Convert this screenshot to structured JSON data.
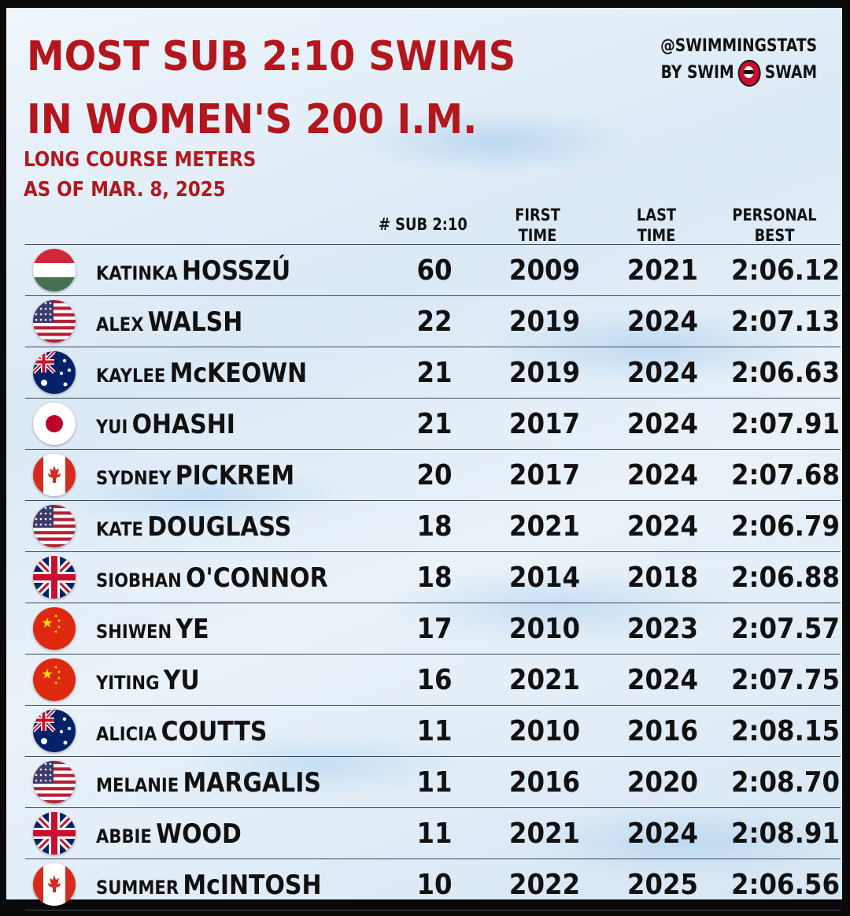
{
  "title": {
    "line1": "MOST SUB 2:10 SWIMS",
    "line2": "IN WOMEN'S 200 I.M."
  },
  "subtitle": {
    "line1": "LONG COURSE METERS",
    "line2": "AS OF MAR. 8, 2025"
  },
  "brand": {
    "handle": "@SWIMMINGSTATS",
    "by_left": "BY SWIM",
    "by_right": "SWAM",
    "logo_icon": "swimswam-logo-icon"
  },
  "colors": {
    "title_red": "#b3161c",
    "text": "#111111"
  },
  "chart_data": {
    "type": "table",
    "title": "MOST SUB 2:10 SWIMS IN WOMEN'S 200 I.M.",
    "subtitle": "LONG COURSE METERS AS OF MAR. 8, 2025",
    "columns": [
      {
        "key": "count",
        "line1": "# SUB 2:10",
        "line2": ""
      },
      {
        "key": "first",
        "line1": "FIRST",
        "line2": "TIME"
      },
      {
        "key": "last",
        "line1": "LAST",
        "line2": "TIME"
      },
      {
        "key": "pb",
        "line1": "PERSONAL",
        "line2": "BEST"
      }
    ],
    "rows": [
      {
        "first_name": "KATINKA",
        "last_name": "HOSSZÚ",
        "flag": "hungary-flag-icon",
        "count": "60",
        "first": "2009",
        "last": "2021",
        "pb": "2:06.12"
      },
      {
        "first_name": "ALEX",
        "last_name": "WALSH",
        "flag": "usa-flag-icon",
        "count": "22",
        "first": "2019",
        "last": "2024",
        "pb": "2:07.13"
      },
      {
        "first_name": "KAYLEE",
        "last_name": "McKEOWN",
        "flag": "australia-flag-icon",
        "count": "21",
        "first": "2019",
        "last": "2024",
        "pb": "2:06.63"
      },
      {
        "first_name": "YUI",
        "last_name": "OHASHI",
        "flag": "japan-flag-icon",
        "count": "21",
        "first": "2017",
        "last": "2024",
        "pb": "2:07.91"
      },
      {
        "first_name": "SYDNEY",
        "last_name": "PICKREM",
        "flag": "canada-flag-icon",
        "count": "20",
        "first": "2017",
        "last": "2024",
        "pb": "2:07.68"
      },
      {
        "first_name": "KATE",
        "last_name": "DOUGLASS",
        "flag": "usa-flag-icon",
        "count": "18",
        "first": "2021",
        "last": "2024",
        "pb": "2:06.79"
      },
      {
        "first_name": "SIOBHAN",
        "last_name": "O'CONNOR",
        "flag": "uk-flag-icon",
        "count": "18",
        "first": "2014",
        "last": "2018",
        "pb": "2:06.88"
      },
      {
        "first_name": "SHIWEN",
        "last_name": "YE",
        "flag": "china-flag-icon",
        "count": "17",
        "first": "2010",
        "last": "2023",
        "pb": "2:07.57"
      },
      {
        "first_name": "YITING",
        "last_name": "YU",
        "flag": "china-flag-icon",
        "count": "16",
        "first": "2021",
        "last": "2024",
        "pb": "2:07.75"
      },
      {
        "first_name": "ALICIA",
        "last_name": "COUTTS",
        "flag": "australia-flag-icon",
        "count": "11",
        "first": "2010",
        "last": "2016",
        "pb": "2:08.15"
      },
      {
        "first_name": "MELANIE",
        "last_name": "MARGALIS",
        "flag": "usa-flag-icon",
        "count": "11",
        "first": "2016",
        "last": "2020",
        "pb": "2:08.70"
      },
      {
        "first_name": "ABBIE",
        "last_name": "WOOD",
        "flag": "uk-flag-icon",
        "count": "11",
        "first": "2021",
        "last": "2024",
        "pb": "2:08.91"
      },
      {
        "first_name": "SUMMER",
        "last_name": "McINTOSH",
        "flag": "canada-flag-icon",
        "count": "10",
        "first": "2022",
        "last": "2025",
        "pb": "2:06.56"
      }
    ]
  }
}
